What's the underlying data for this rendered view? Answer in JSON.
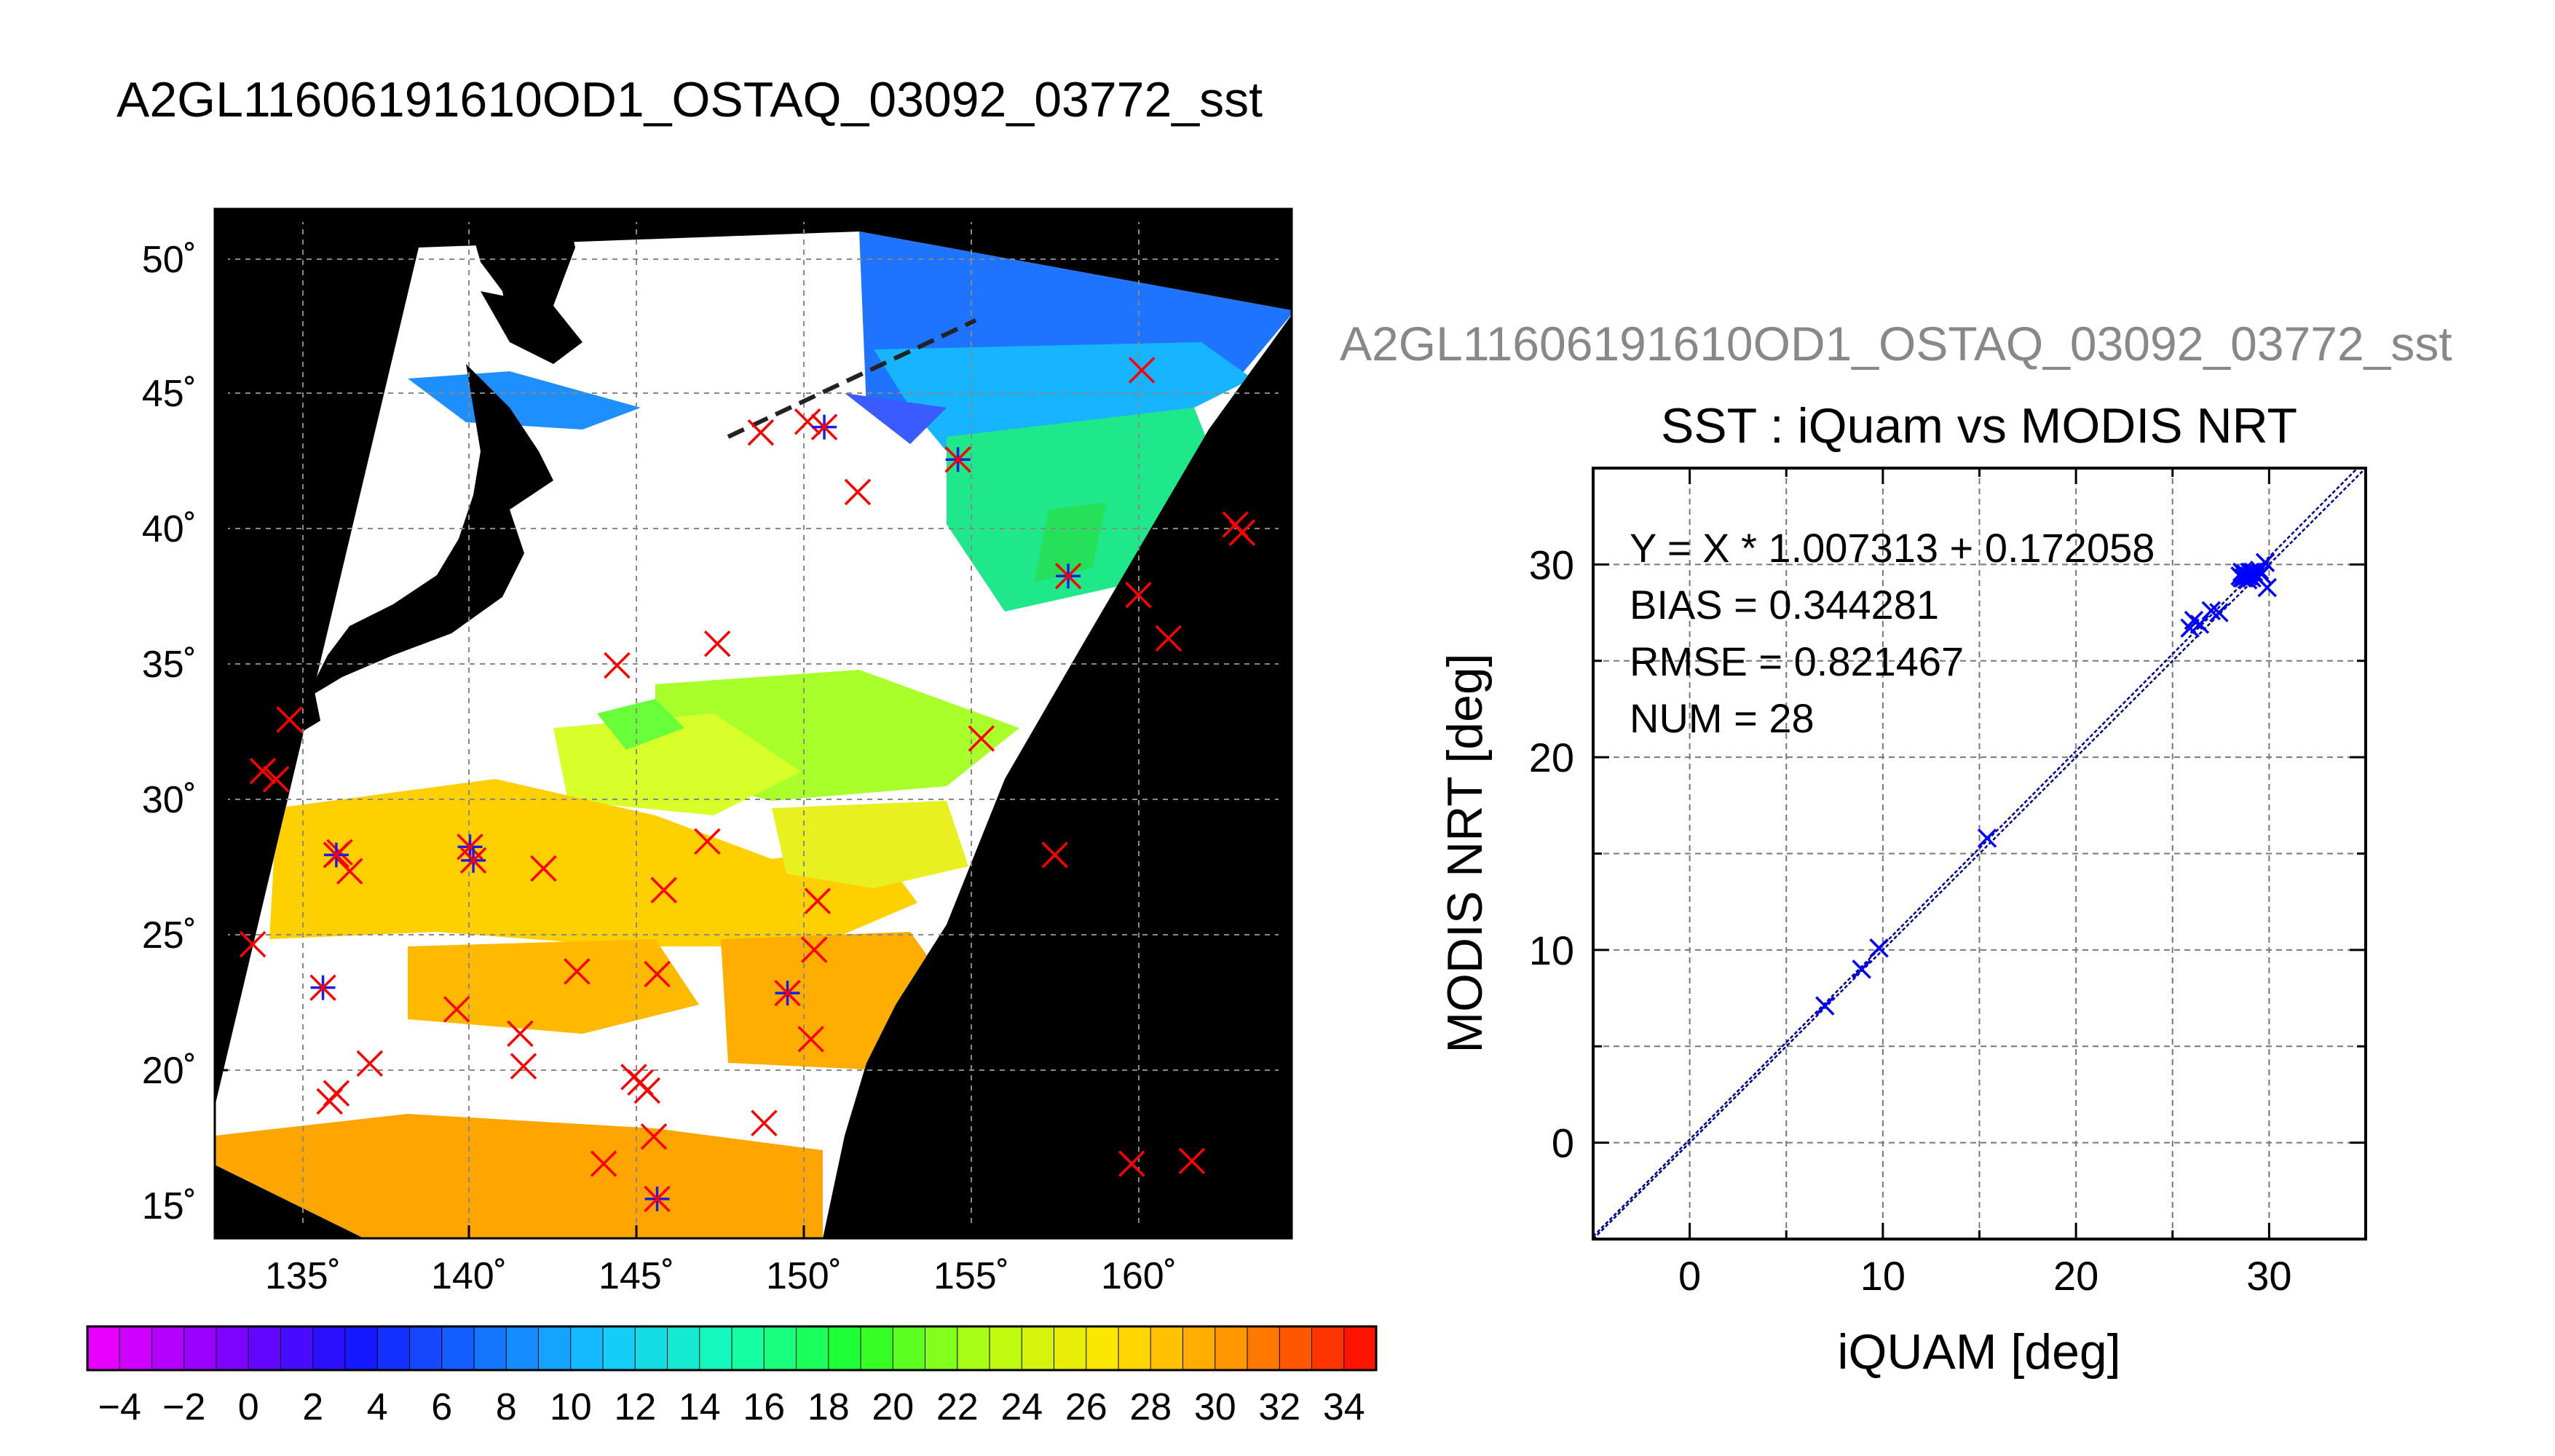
{
  "page_title": "A2GL11606191610OD1_OSTAQ_03092_03772_sst",
  "scatter_header": "A2GL11606191610OD1_OSTAQ_03092_03772_sst",
  "map": {
    "lat_labels": [
      "50˚",
      "45˚",
      "40˚",
      "35˚",
      "30˚",
      "25˚",
      "20˚",
      "15˚"
    ],
    "lon_labels": [
      "135˚",
      "140˚",
      "145˚",
      "150˚",
      "155˚",
      "160˚"
    ],
    "lon_range": [
      132.8,
      163.3
    ],
    "lat_range": [
      14.0,
      52.0
    ],
    "background_color": "#000000",
    "cloud_color": "#ffffff",
    "observations_x": [
      [
        133.5,
        24.7
      ],
      [
        133.8,
        31.1
      ],
      [
        134.2,
        30.8
      ],
      [
        134.6,
        33.0
      ],
      [
        135.8,
        18.9
      ],
      [
        136.0,
        19.2
      ],
      [
        136.1,
        28.1
      ],
      [
        136.4,
        27.4
      ],
      [
        137.0,
        20.3
      ],
      [
        139.6,
        22.3
      ],
      [
        141.5,
        21.4
      ],
      [
        141.6,
        20.2
      ],
      [
        142.2,
        27.5
      ],
      [
        143.2,
        23.7
      ],
      [
        144.0,
        16.6
      ],
      [
        144.4,
        35.0
      ],
      [
        144.9,
        19.8
      ],
      [
        145.1,
        19.6
      ],
      [
        145.3,
        19.3
      ],
      [
        145.5,
        17.6
      ],
      [
        145.6,
        23.6
      ],
      [
        145.8,
        26.7
      ],
      [
        147.1,
        28.5
      ],
      [
        147.4,
        35.8
      ],
      [
        148.7,
        43.6
      ],
      [
        148.8,
        18.1
      ],
      [
        150.1,
        44.0
      ],
      [
        150.2,
        21.2
      ],
      [
        150.3,
        24.5
      ],
      [
        150.4,
        26.3
      ],
      [
        151.6,
        41.4
      ],
      [
        155.3,
        32.3
      ],
      [
        157.5,
        28.0
      ],
      [
        159.8,
        16.6
      ],
      [
        160.0,
        37.6
      ],
      [
        160.1,
        45.9
      ],
      [
        160.9,
        36.0
      ],
      [
        161.6,
        16.7
      ],
      [
        162.9,
        40.2
      ],
      [
        163.1,
        39.9
      ]
    ],
    "observations_star": [
      [
        135.6,
        23.1
      ],
      [
        136.0,
        28.0
      ],
      [
        140.0,
        28.3
      ],
      [
        140.1,
        27.8
      ],
      [
        145.6,
        15.3
      ],
      [
        149.5,
        22.9
      ],
      [
        150.6,
        43.8
      ],
      [
        154.6,
        42.6
      ],
      [
        157.9,
        38.3
      ]
    ],
    "marker_color": "#ff0000",
    "star_color": "#1c1ce8"
  },
  "colorbar": {
    "tick_labels": [
      "−4",
      "−2",
      "0",
      "2",
      "4",
      "6",
      "8",
      "10",
      "12",
      "14",
      "16",
      "18",
      "20",
      "22",
      "24",
      "26",
      "28",
      "30",
      "32",
      "34"
    ],
    "range": [
      -5,
      35
    ]
  },
  "chart_data": {
    "type": "scatter",
    "title": "SST : iQuam vs MODIS NRT",
    "xlabel": "iQUAM [deg]",
    "ylabel": "MODIS NRT [deg]",
    "xlim": [
      -5,
      35
    ],
    "ylim": [
      -5,
      35
    ],
    "x_ticks": [
      0,
      10,
      20,
      30
    ],
    "y_ticks": [
      0,
      10,
      20,
      30
    ],
    "grid": true,
    "annotations": {
      "fit": "Y = X * 1.007313 + 0.172058",
      "bias": "BIAS = 0.344281",
      "rmse": "RMSE = 0.821467",
      "num": "NUM = 28"
    },
    "fit_line": {
      "slope": 1.007313,
      "intercept": 0.172058
    },
    "series": [
      {
        "points": [
          [
            7.0,
            7.1
          ],
          [
            8.9,
            9.0
          ],
          [
            9.8,
            10.1
          ],
          [
            15.4,
            15.8
          ],
          [
            25.9,
            26.7
          ],
          [
            26.1,
            27.1
          ],
          [
            26.4,
            26.9
          ],
          [
            27.0,
            27.6
          ],
          [
            27.4,
            27.5
          ],
          [
            28.5,
            29.4
          ],
          [
            28.6,
            29.6
          ],
          [
            28.7,
            29.3
          ],
          [
            28.8,
            29.5
          ],
          [
            28.9,
            29.4
          ],
          [
            29.0,
            29.6
          ],
          [
            29.1,
            29.3
          ],
          [
            29.2,
            29.5
          ],
          [
            29.3,
            29.4
          ],
          [
            28.7,
            29.5
          ],
          [
            28.9,
            29.2
          ],
          [
            29.0,
            29.4
          ],
          [
            29.1,
            29.6
          ],
          [
            29.6,
            29.5
          ],
          [
            29.8,
            30.1
          ],
          [
            29.9,
            28.8
          ],
          [
            29.5,
            29.7
          ],
          [
            28.6,
            29.3
          ],
          [
            29.2,
            29.6
          ]
        ],
        "color": "#0000ff"
      }
    ]
  }
}
